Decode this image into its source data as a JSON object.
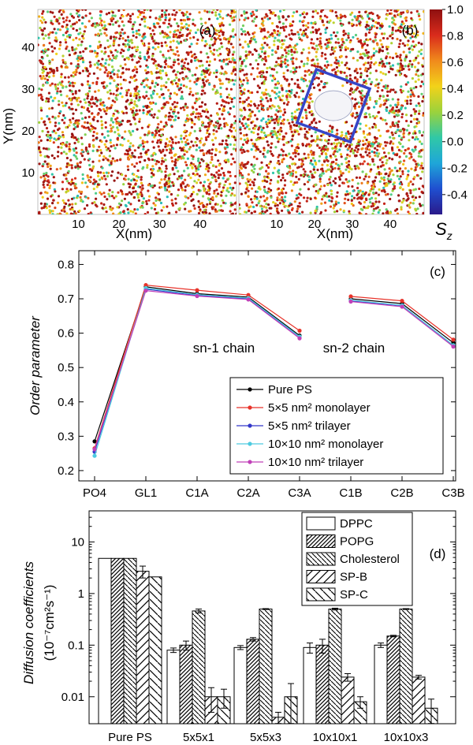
{
  "chart_data": [
    {
      "panel": "(a)",
      "type": "scatter",
      "xlabel": "X(nm)",
      "ylabel": "Y(nm)",
      "xticks": [
        "10",
        "20",
        "30",
        "40"
      ],
      "yticks": [
        "10",
        "20",
        "30",
        "40"
      ],
      "xlim": [
        0,
        49
      ],
      "ylim": [
        0,
        49
      ]
    },
    {
      "panel": "(b)",
      "type": "scatter",
      "xlabel": "X(nm)",
      "xticks": [
        "10",
        "20",
        "30",
        "40"
      ],
      "xlim": [
        0,
        49
      ],
      "ylim": [
        0,
        49
      ],
      "colorbar": {
        "label": "S",
        "label_sub": "z",
        "ticks": [
          "1.0",
          "0.8",
          "0.6",
          "0.4",
          "0.2",
          "0.0",
          "-0.2",
          "-0.4"
        ],
        "range": [
          -0.55,
          1.0
        ],
        "colors": [
          "#2a1a8a",
          "#1f4fd0",
          "#1fa6d8",
          "#30c8a6",
          "#9bd23c",
          "#f2d21a",
          "#f08a1c",
          "#d92b1c",
          "#8e1010"
        ]
      },
      "box": {
        "color": "#3546c8",
        "center": [
          25,
          26
        ],
        "half_size": 7.5,
        "rotation_deg": 20
      }
    },
    {
      "panel": "(c)",
      "type": "line",
      "ylabel": "Order parameter",
      "categories": [
        "PO4",
        "GL1",
        "C1A",
        "C2A",
        "C3A",
        "C1B",
        "C2B",
        "C3B"
      ],
      "yticks": [
        "0.2",
        "0.3",
        "0.4",
        "0.5",
        "0.6",
        "0.7",
        "0.8"
      ],
      "ylim": [
        0.17,
        0.84
      ],
      "annotations": [
        "sn-1 chain",
        "sn-2 chain"
      ],
      "legend_position": "lower-right",
      "series": [
        {
          "name": "Pure PS",
          "color": "#000000",
          "values": [
            0.285,
            0.735,
            0.715,
            0.705,
            0.593,
            0.7,
            0.686,
            0.572
          ]
        },
        {
          "name": "5×5 nm² monolayer",
          "color": "#e8332a",
          "values": [
            0.265,
            0.74,
            0.725,
            0.711,
            0.607,
            0.707,
            0.694,
            0.581
          ]
        },
        {
          "name": "5×5 nm² trilayer",
          "color": "#3337c9",
          "values": [
            0.255,
            0.728,
            0.71,
            0.7,
            0.589,
            0.694,
            0.68,
            0.564
          ]
        },
        {
          "name": "10×10 nm² monolayer",
          "color": "#4dcbe0",
          "values": [
            0.243,
            0.731,
            0.712,
            0.702,
            0.59,
            0.696,
            0.681,
            0.565
          ]
        },
        {
          "name": "10×10 nm² trilayer",
          "color": "#c040b8",
          "values": [
            0.262,
            0.724,
            0.708,
            0.698,
            0.585,
            0.692,
            0.677,
            0.561
          ]
        }
      ]
    },
    {
      "panel": "(d)",
      "type": "bar",
      "ylabel": "Diffusion coefficients",
      "ylabel_units": "(10⁻⁷cm²s⁻¹)",
      "yscale": "log",
      "ylim": [
        0.003,
        40
      ],
      "yticks": [
        "0.01",
        "0.1",
        "1",
        "10"
      ],
      "categories": [
        "Pure PS",
        "5x5x1",
        "5x5x3",
        "10x10x1",
        "10x10x3"
      ],
      "legend_position": "top-right",
      "series": [
        {
          "name": "DPPC",
          "pattern": "none",
          "values": [
            4.8,
            0.08,
            0.09,
            0.09,
            0.1
          ],
          "errors": [
            0,
            0.008,
            0.008,
            0.02,
            0.01
          ]
        },
        {
          "name": "POPG",
          "pattern": "dense-diag",
          "values": [
            4.8,
            0.1,
            0.13,
            0.1,
            0.15
          ],
          "errors": [
            0,
            0.02,
            0.01,
            0.03,
            0.005
          ]
        },
        {
          "name": "Cholesterol",
          "pattern": "back-diag",
          "values": [
            4.8,
            0.46,
            0.5,
            0.5,
            0.5
          ],
          "errors": [
            0,
            0.04,
            0.01,
            0.02,
            0.01
          ]
        },
        {
          "name": "SP-B",
          "pattern": "wide-diag",
          "values": [
            2.7,
            0.01,
            0.004,
            0.024,
            0.024
          ],
          "errors": [
            0.7,
            0.005,
            0.001,
            0.004,
            0.002
          ]
        },
        {
          "name": "SP-C",
          "pattern": "wide-back-diag",
          "values": [
            2.1,
            0.01,
            0.01,
            0.008,
            0.006
          ],
          "errors": [
            0,
            0.004,
            0.008,
            0.002,
            0.003
          ]
        }
      ]
    }
  ]
}
